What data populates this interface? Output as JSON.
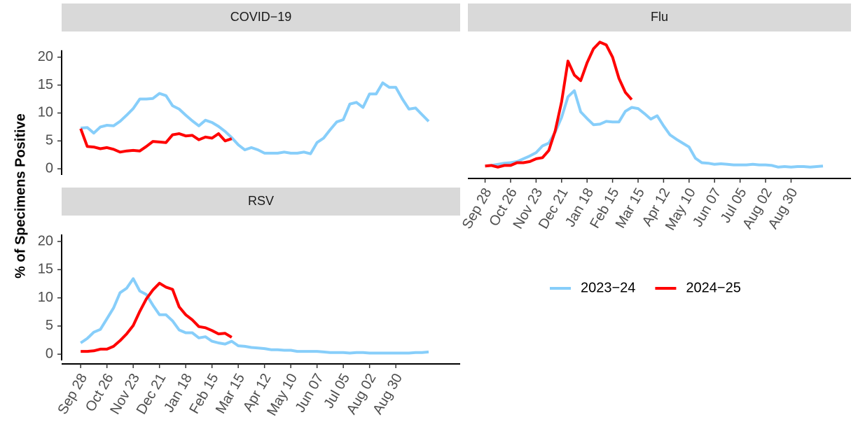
{
  "y_label": "% of Specimens Positive",
  "legend": {
    "position": "right",
    "series": [
      {
        "name": "2023−24",
        "color": "#87CEFA"
      },
      {
        "name": "2024−25",
        "color": "#FF0000"
      }
    ]
  },
  "chart_data": [
    {
      "type": "line",
      "title": "COVID−19",
      "ylim": [
        -1.1,
        24.6
      ],
      "yticks": [
        0,
        5,
        10,
        15,
        20
      ],
      "series": [
        {
          "values": [
            7.3,
            7.4,
            6.4,
            7.5,
            7.8,
            7.7,
            8.5,
            9.6,
            10.8,
            12.5,
            12.5,
            12.6,
            13.5,
            13.1,
            11.3,
            10.7,
            9.6,
            8.6,
            7.7,
            8.7,
            8.3,
            7.6,
            6.7,
            5.6,
            4.3,
            3.4,
            3.8,
            3.4,
            2.8,
            2.8,
            2.8,
            3.0,
            2.8,
            2.8,
            3.0,
            2.7,
            4.7,
            5.5,
            7.0,
            8.4,
            8.8,
            11.6,
            11.9,
            11.0,
            13.4,
            13.4,
            15.4,
            14.6,
            14.6,
            12.5,
            10.7,
            10.9,
            9.7,
            8.5
          ]
        },
        {
          "values": [
            7.2,
            4.0,
            3.9,
            3.6,
            3.8,
            3.5,
            3.0,
            3.2,
            3.3,
            3.2,
            4.0,
            4.9,
            4.8,
            4.7,
            6.1,
            6.3,
            5.9,
            6.0,
            5.2,
            5.7,
            5.5,
            6.3,
            5.0,
            5.4,
            null,
            null,
            null,
            null,
            null,
            null,
            null,
            null,
            null,
            null,
            null,
            null,
            null,
            null,
            null,
            null,
            null,
            null,
            null,
            null,
            null,
            null,
            null,
            null,
            null,
            null,
            null,
            null,
            null,
            null
          ]
        }
      ]
    },
    {
      "type": "line",
      "title": "Flu",
      "ylim": [
        -1.1,
        24.6
      ],
      "categories": [
        "Sep 28",
        null,
        null,
        null,
        "Oct 26",
        null,
        null,
        null,
        "Nov 23",
        null,
        null,
        null,
        "Dec 21",
        null,
        null,
        null,
        "Jan 18",
        null,
        null,
        null,
        "Feb 15",
        null,
        null,
        null,
        "Mar 15",
        null,
        null,
        null,
        "Apr 12",
        null,
        null,
        null,
        "May 10",
        null,
        null,
        null,
        "Jun 07",
        null,
        null,
        null,
        "Jul 05",
        null,
        null,
        null,
        "Aug 02",
        null,
        null,
        null,
        "Aug 30",
        null,
        null,
        null,
        null,
        null
      ],
      "series": [
        {
          "values": [
            0.5,
            0.6,
            0.8,
            1.0,
            1.1,
            1.3,
            1.8,
            2.3,
            2.9,
            4.1,
            4.6,
            6.6,
            9.2,
            12.9,
            14.0,
            10.2,
            9.0,
            7.9,
            8.0,
            8.5,
            8.4,
            8.4,
            10.3,
            11.0,
            10.8,
            9.9,
            8.9,
            9.5,
            7.7,
            6.1,
            5.3,
            4.6,
            3.9,
            1.9,
            1.1,
            1.0,
            0.8,
            0.9,
            0.8,
            0.7,
            0.7,
            0.7,
            0.8,
            0.7,
            0.7,
            0.6,
            0.3,
            0.4,
            0.3,
            0.4,
            0.4,
            0.3,
            0.4,
            0.5
          ]
        },
        {
          "values": [
            0.5,
            0.6,
            0.3,
            0.6,
            0.6,
            1.1,
            1.1,
            1.3,
            1.8,
            2.0,
            3.3,
            6.8,
            12.0,
            19.3,
            16.8,
            15.8,
            19.0,
            21.5,
            22.7,
            22.2,
            20.0,
            16.2,
            13.7,
            12.4,
            null,
            null,
            null,
            null,
            null,
            null,
            null,
            null,
            null,
            null,
            null,
            null,
            null,
            null,
            null,
            null,
            null,
            null,
            null,
            null,
            null,
            null,
            null,
            null,
            null,
            null,
            null,
            null,
            null,
            null
          ]
        }
      ]
    },
    {
      "type": "line",
      "title": "RSV",
      "ylim": [
        -1.1,
        24.6
      ],
      "yticks": [
        0,
        5,
        10,
        15,
        20
      ],
      "categories": [
        "Sep 28",
        null,
        null,
        null,
        "Oct 26",
        null,
        null,
        null,
        "Nov 23",
        null,
        null,
        null,
        "Dec 21",
        null,
        null,
        null,
        "Jan 18",
        null,
        null,
        null,
        "Feb 15",
        null,
        null,
        null,
        "Mar 15",
        null,
        null,
        null,
        "Apr 12",
        null,
        null,
        null,
        "May 10",
        null,
        null,
        null,
        "Jun 07",
        null,
        null,
        null,
        "Jul 05",
        null,
        null,
        null,
        "Aug 02",
        null,
        null,
        null,
        "Aug 30",
        null,
        null,
        null,
        null,
        null
      ],
      "series": [
        {
          "values": [
            2.0,
            2.8,
            3.9,
            4.4,
            6.3,
            8.2,
            10.9,
            11.7,
            13.4,
            11.2,
            10.6,
            8.7,
            7.0,
            7.0,
            5.9,
            4.3,
            3.8,
            3.8,
            2.9,
            3.1,
            2.3,
            2.0,
            1.8,
            2.3,
            1.5,
            1.4,
            1.2,
            1.1,
            1.0,
            0.8,
            0.8,
            0.7,
            0.7,
            0.5,
            0.5,
            0.5,
            0.5,
            0.4,
            0.3,
            0.3,
            0.3,
            0.2,
            0.3,
            0.3,
            0.2,
            0.2,
            0.2,
            0.2,
            0.2,
            0.2,
            0.2,
            0.3,
            0.3,
            0.4
          ]
        },
        {
          "values": [
            0.5,
            0.5,
            0.6,
            0.9,
            0.9,
            1.4,
            2.4,
            3.6,
            5.1,
            7.6,
            9.8,
            11.4,
            12.6,
            11.9,
            11.5,
            8.4,
            7.0,
            6.1,
            4.9,
            4.7,
            4.2,
            3.6,
            3.7,
            3.0,
            null,
            null,
            null,
            null,
            null,
            null,
            null,
            null,
            null,
            null,
            null,
            null,
            null,
            null,
            null,
            null,
            null,
            null,
            null,
            null,
            null,
            null,
            null,
            null,
            null,
            null,
            null,
            null,
            null,
            null
          ]
        }
      ]
    }
  ]
}
